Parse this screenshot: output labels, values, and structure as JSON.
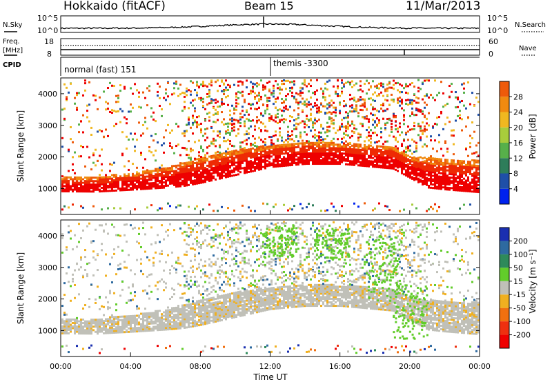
{
  "header": {
    "station": "Hokkaido (fitACF)",
    "beam": "Beam 15",
    "date": "11/Mar/2013"
  },
  "noise_panel": {
    "left_label": "N.Sky",
    "right_label": "N.Search",
    "left_ticks": [
      "10^5",
      "10^0"
    ],
    "right_ticks": [
      "10^5",
      "10^0"
    ]
  },
  "freq_panel": {
    "left_label_1": "Freq.",
    "left_label_2": "[MHz]",
    "left_ticks": [
      "18",
      "8"
    ],
    "right_label": "Nave",
    "right_ticks": [
      "60",
      "0"
    ]
  },
  "cpid_panel": {
    "label": "CPID",
    "modes": [
      "normal (fast) 151",
      "themis -3300"
    ],
    "mode_change_hour": 12
  },
  "power_panel": {
    "ylabel": "Slant Range [km]",
    "yticks": [
      "1000",
      "2000",
      "3000",
      "4000"
    ],
    "colorbar_label": "Power [dB]",
    "colorbar_ticks": [
      "4",
      "8",
      "12",
      "16",
      "20",
      "24",
      "28"
    ],
    "colors": [
      "#0022ee",
      "#1f4fa8",
      "#2e7d5a",
      "#57b04a",
      "#a8cc3c",
      "#f0b820",
      "#f08a10",
      "#ee5a0a",
      "#ee2a05",
      "#ee0000"
    ]
  },
  "velocity_panel": {
    "ylabel": "Slant Range [km]",
    "yticks": [
      "1000",
      "2000",
      "3000",
      "4000"
    ],
    "colorbar_label": "Velocity [m s⁻¹]",
    "colorbar_ticks": [
      "200",
      "100",
      "50",
      "15",
      "-15",
      "-50",
      "-100",
      "-200"
    ],
    "colors": [
      "#1a2fb0",
      "#2e6aa0",
      "#2e8a5a",
      "#62cc2a",
      "#c0c0b8",
      "#f0b020",
      "#f07010",
      "#ee3010",
      "#ee0000"
    ]
  },
  "xaxis": {
    "label": "Time UT",
    "ticks": [
      "00:00",
      "04:00",
      "08:00",
      "12:00",
      "16:00",
      "20:00",
      "00:00"
    ]
  },
  "chart_data": {
    "type": "heatmap",
    "title": "Hokkaido (fitACF) Beam 15 11/Mar/2013",
    "xlabel": "Time UT",
    "ylabel": "Slant Range [km]",
    "xlim": [
      0,
      24
    ],
    "ylim": [
      180,
      4500
    ],
    "series": [
      {
        "name": "Power",
        "unit": "dB",
        "range": [
          0,
          30
        ],
        "ground_scatter_lower_edge": [
          [
            0,
            880
          ],
          [
            2,
            870
          ],
          [
            4,
            930
          ],
          [
            6,
            1000
          ],
          [
            7,
            1050
          ],
          [
            8,
            1150
          ],
          [
            10,
            1400
          ],
          [
            12,
            1650
          ],
          [
            14,
            1750
          ],
          [
            16,
            1750
          ],
          [
            18,
            1650
          ],
          [
            19,
            1600
          ],
          [
            20,
            1300
          ],
          [
            21,
            1000
          ],
          [
            22,
            940
          ],
          [
            24,
            850
          ]
        ],
        "ground_scatter_upper_edge": [
          [
            0,
            1350
          ],
          [
            2,
            1350
          ],
          [
            4,
            1450
          ],
          [
            6,
            1650
          ],
          [
            8,
            1950
          ],
          [
            10,
            2200
          ],
          [
            12,
            2350
          ],
          [
            14,
            2450
          ],
          [
            16,
            2400
          ],
          [
            18,
            2350
          ],
          [
            19,
            2300
          ],
          [
            20,
            2000
          ],
          [
            22,
            1900
          ],
          [
            24,
            1850
          ]
        ]
      },
      {
        "name": "Velocity",
        "unit": "m s⁻¹",
        "range": [
          -200,
          200
        ],
        "ionospheric_scatter_band": [
          [
            12.5,
            3300,
            4300
          ],
          [
            15.5,
            3200,
            4200
          ],
          [
            18.5,
            1900,
            4000
          ],
          [
            20,
            700,
            2400
          ]
        ]
      }
    ],
    "cpid_modes": [
      {
        "start": 0,
        "end": 12,
        "mode": "normal (fast) 151"
      },
      {
        "start": 12,
        "end": 24,
        "mode": "themis -3300"
      }
    ]
  }
}
